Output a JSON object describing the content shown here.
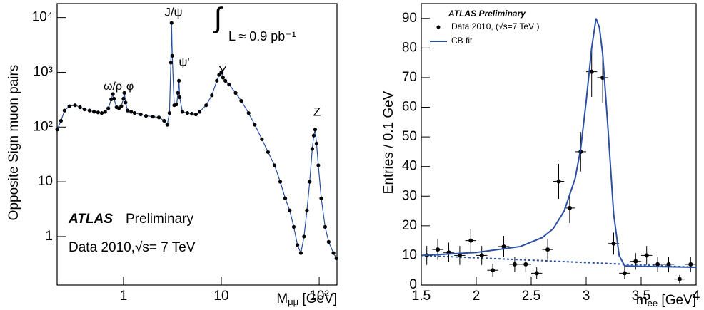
{
  "chart_data": [
    {
      "type": "line",
      "log_x": true,
      "log_y": true,
      "color": "#2a4fa0",
      "marker_color": "#000",
      "y_label": "Opposite Sign muon pairs",
      "x_label": {
        "main": "M",
        "sub": "μμ",
        "unit": " [GeV]"
      },
      "xlim": [
        0.21,
        152
      ],
      "xticks": [
        1,
        10,
        {
          "value": 100,
          "label": "10²"
        }
      ],
      "ylim": [
        0.13,
        18000
      ],
      "yticks": [
        1,
        10,
        {
          "value": 100,
          "label": "10²"
        },
        {
          "value": 1000,
          "label": "10³"
        },
        {
          "value": 10000,
          "label": "10⁴"
        }
      ],
      "annotations": [
        "ω/ρ",
        "φ",
        "J/ψ",
        "ψ'",
        "Υ",
        "Z",
        "∫",
        "L ≈ 0.9 pb⁻¹",
        "ATLAS",
        "Preliminary",
        "Data 2010,√s= 7 TeV"
      ],
      "x": [
        0.21,
        0.23,
        0.25,
        0.28,
        0.32,
        0.36,
        0.4,
        0.45,
        0.5,
        0.55,
        0.6,
        0.65,
        0.7,
        0.75,
        0.78,
        0.8,
        0.85,
        0.9,
        0.95,
        1.0,
        1.02,
        1.05,
        1.1,
        1.2,
        1.3,
        1.5,
        1.7,
        2.0,
        2.3,
        2.6,
        2.8,
        2.95,
        3.05,
        3.1,
        3.15,
        3.3,
        3.5,
        3.6,
        3.69,
        3.75,
        4.0,
        4.5,
        5,
        5.5,
        6,
        7,
        8,
        9,
        9.5,
        10,
        10.4,
        11,
        12,
        14,
        16,
        19,
        22,
        26,
        30,
        35,
        40,
        45,
        50,
        55,
        60,
        65,
        70,
        75,
        80,
        85,
        88,
        91,
        94,
        98,
        105,
        115,
        125,
        140,
        150
      ],
      "values": [
        90,
        130,
        200,
        240,
        250,
        230,
        210,
        200,
        190,
        185,
        180,
        190,
        220,
        320,
        400,
        330,
        230,
        220,
        240,
        330,
        420,
        280,
        200,
        190,
        180,
        170,
        160,
        155,
        150,
        130,
        110,
        180,
        1500,
        8000,
        2000,
        250,
        260,
        420,
        700,
        350,
        190,
        180,
        175,
        170,
        190,
        250,
        380,
        700,
        900,
        1000,
        800,
        700,
        600,
        420,
        300,
        180,
        110,
        60,
        35,
        20,
        10,
        5,
        3,
        1.5,
        0.7,
        0.5,
        1,
        3,
        10,
        40,
        70,
        90,
        50,
        20,
        5,
        1.5,
        0.8,
        0.5,
        0.4
      ]
    },
    {
      "type": "scatter",
      "grid": false,
      "y_label": "Entries / 0.1 GeV",
      "x_label": {
        "main": "m",
        "sub": "ee",
        "unit": " [GeV]"
      },
      "legend_title": "ATLAS Preliminary",
      "xlim": [
        1.5,
        4
      ],
      "xticks": [
        1.5,
        2,
        2.5,
        3,
        3.5,
        4
      ],
      "ylim": [
        0,
        95
      ],
      "yticks": [
        0,
        10,
        20,
        30,
        40,
        50,
        60,
        70,
        80,
        90
      ],
      "series": [
        {
          "name": "Data 2010, (√s=7 TeV )",
          "color": "#000",
          "x": [
            1.55,
            1.65,
            1.75,
            1.85,
            1.95,
            2.05,
            2.15,
            2.25,
            2.35,
            2.45,
            2.55,
            2.65,
            2.75,
            2.85,
            2.95,
            3.05,
            3.15,
            3.25,
            3.35,
            3.45,
            3.55,
            3.65,
            3.75,
            3.85,
            3.95
          ],
          "values": [
            10,
            12,
            11,
            10,
            15,
            10,
            5,
            13,
            7,
            7,
            4,
            12,
            35,
            26,
            45,
            72,
            70,
            14,
            4,
            8,
            10,
            7,
            7,
            2,
            7
          ],
          "errors": [
            3.2,
            3.5,
            3.3,
            3.2,
            3.9,
            3.2,
            2.2,
            3.6,
            2.6,
            2.6,
            2,
            3.5,
            5.9,
            5.1,
            6.7,
            8.5,
            8.4,
            3.7,
            2,
            2.8,
            3.2,
            2.6,
            2.6,
            1.4,
            2.6
          ],
          "xerr": 0.05
        },
        {
          "name": "CB fit",
          "color": "#2a4fa0",
          "x": [
            1.5,
            2.0,
            2.4,
            2.6,
            2.7,
            2.8,
            2.9,
            2.95,
            3.0,
            3.05,
            3.09,
            3.12,
            3.15,
            3.2,
            3.25,
            3.3,
            3.35,
            3.5,
            4.0
          ],
          "values": [
            10,
            11,
            13,
            16,
            19,
            25,
            36,
            46,
            62,
            80,
            90,
            87,
            78,
            52,
            24,
            10,
            6.5,
            6.3,
            6
          ]
        }
      ],
      "background": {
        "color": "#2a4fa0",
        "dashed": true,
        "x": [
          1.5,
          4
        ],
        "values": [
          10,
          6
        ]
      }
    }
  ]
}
